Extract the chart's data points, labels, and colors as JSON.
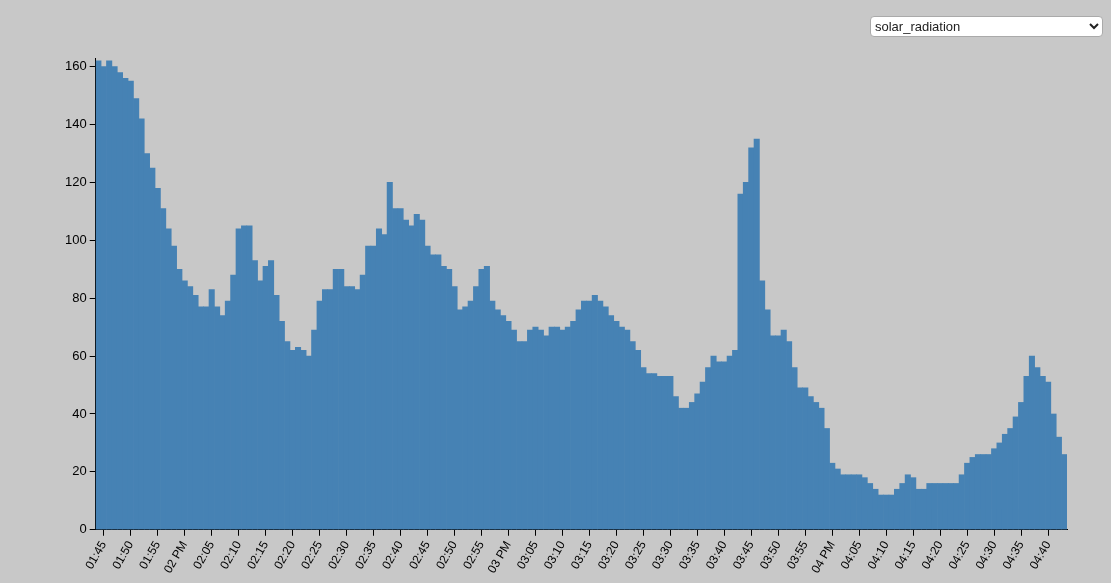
{
  "chart_data": {
    "type": "bar",
    "annotations": [
      "solar_radiation"
    ],
    "categories": [
      null,
      "01:45",
      null,
      null,
      null,
      null,
      "01:50",
      null,
      null,
      null,
      null,
      "01:55",
      null,
      null,
      null,
      null,
      "02 PM",
      null,
      null,
      null,
      null,
      "02:05",
      null,
      null,
      null,
      null,
      "02:10",
      null,
      null,
      null,
      null,
      "02:15",
      null,
      null,
      null,
      null,
      "02:20",
      null,
      null,
      null,
      null,
      "02:25",
      null,
      null,
      null,
      null,
      "02:30",
      null,
      null,
      null,
      null,
      "02:35",
      null,
      null,
      null,
      null,
      "02:40",
      null,
      null,
      null,
      null,
      "02:45",
      null,
      null,
      null,
      null,
      "02:50",
      null,
      null,
      null,
      null,
      "02:55",
      null,
      null,
      null,
      null,
      "03 PM",
      null,
      null,
      null,
      null,
      "03:05",
      null,
      null,
      null,
      null,
      "03:10",
      null,
      null,
      null,
      null,
      "03:15",
      null,
      null,
      null,
      null,
      "03:20",
      null,
      null,
      null,
      null,
      "03:25",
      null,
      null,
      null,
      null,
      "03:30",
      null,
      null,
      null,
      null,
      "03:35",
      null,
      null,
      null,
      null,
      "03:40",
      null,
      null,
      null,
      null,
      "03:45",
      null,
      null,
      null,
      null,
      "03:50",
      null,
      null,
      null,
      null,
      "03:55",
      null,
      null,
      null,
      null,
      "04 PM",
      null,
      null,
      null,
      null,
      "04:05",
      null,
      null,
      null,
      null,
      "04:10",
      null,
      null,
      null,
      null,
      "04:15",
      null,
      null,
      null,
      null,
      "04:20",
      null,
      null,
      null,
      null,
      "04:25",
      null,
      null,
      null,
      null,
      "04:30",
      null,
      null,
      null,
      null,
      "04:35",
      null,
      null,
      null,
      null,
      "04:40",
      null,
      null,
      null
    ],
    "values": [
      162,
      160,
      162,
      160,
      158,
      156,
      155,
      149,
      142,
      130,
      125,
      118,
      111,
      104,
      98,
      90,
      86,
      84,
      81,
      77,
      77,
      83,
      77,
      74,
      79,
      88,
      104,
      105,
      105,
      93,
      86,
      91,
      93,
      81,
      72,
      65,
      62,
      63,
      62,
      60,
      69,
      79,
      83,
      83,
      90,
      90,
      84,
      84,
      83,
      88,
      98,
      98,
      104,
      102,
      120,
      111,
      111,
      107,
      105,
      109,
      107,
      98,
      95,
      95,
      91,
      90,
      84,
      76,
      77,
      79,
      84,
      90,
      91,
      79,
      76,
      74,
      72,
      69,
      65,
      65,
      69,
      70,
      69,
      67,
      70,
      70,
      69,
      70,
      72,
      76,
      79,
      79,
      81,
      79,
      77,
      74,
      72,
      70,
      69,
      65,
      62,
      56,
      54,
      54,
      53,
      53,
      53,
      46,
      42,
      42,
      44,
      47,
      51,
      56,
      60,
      58,
      58,
      60,
      62,
      116,
      120,
      132,
      135,
      86,
      76,
      67,
      67,
      69,
      65,
      56,
      49,
      49,
      46,
      44,
      42,
      35,
      23,
      21,
      19,
      19,
      19,
      19,
      18,
      16,
      14,
      12,
      12,
      12,
      14,
      16,
      19,
      18,
      14,
      14,
      16,
      16,
      16,
      16,
      16,
      16,
      19,
      23,
      25,
      26,
      26,
      26,
      28,
      30,
      33,
      35,
      39,
      44,
      53,
      60,
      56,
      53,
      51,
      40,
      32,
      26
    ],
    "color": "#4682b4",
    "ylim": [
      0,
      163
    ],
    "yticks": [
      0,
      20,
      40,
      60,
      80,
      100,
      120,
      140,
      160
    ]
  }
}
